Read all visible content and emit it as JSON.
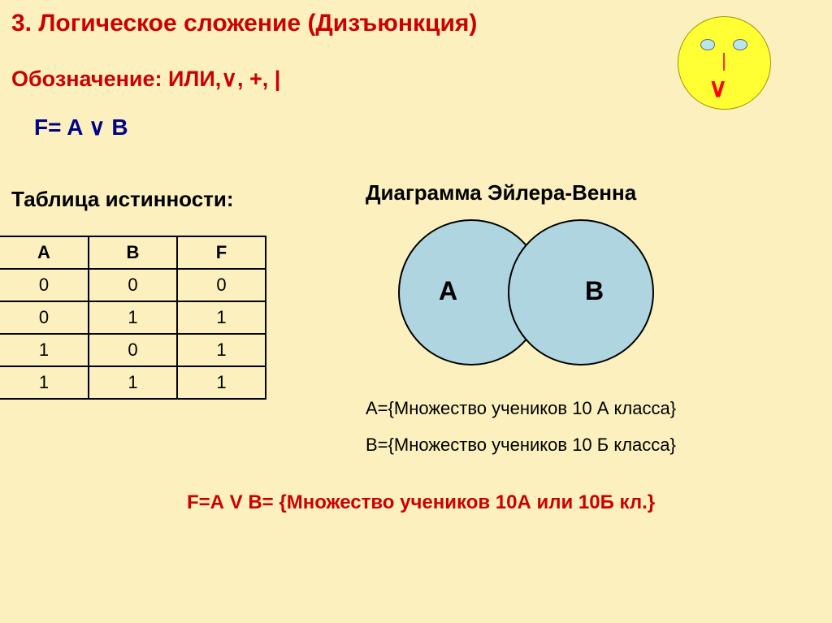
{
  "title": "3. Логическое сложение (Дизъюнкция)",
  "notation": "Обозначение: ИЛИ,∨, +, |",
  "formula": "F= A ∨ B",
  "truthLabel": "Таблица истинности:",
  "vennLabel": "Диаграмма Эйлера-Венна",
  "table": {
    "headers": [
      "A",
      "B",
      "F"
    ],
    "rows": [
      [
        "0",
        "0",
        "0"
      ],
      [
        "0",
        "1",
        "1"
      ],
      [
        "1",
        "0",
        "1"
      ],
      [
        "1",
        "1",
        "1"
      ]
    ]
  },
  "venn": {
    "labelA": "A",
    "labelB": "B",
    "circleColor": "#aed5e0",
    "borderColor": "#000000"
  },
  "setA": "А={Множество учеников 10 А класса}",
  "setB": "B={Множество учеников 10 Б класса}",
  "result": "F=А V В= {Множество учеников 10А или 10Б кл.}",
  "colors": {
    "background": "#fbf0be",
    "titleRed": "#cc0000",
    "formulaBlue": "#000088",
    "black": "#000000",
    "smileyYellow": "#ffff33",
    "eyeBlue": "#b8e6f0",
    "mouthRed": "#ff0000"
  },
  "smiley": {
    "mouth": "∨"
  }
}
